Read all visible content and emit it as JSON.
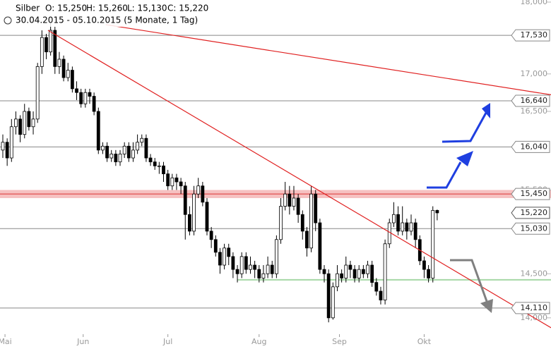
{
  "chart_data": {
    "type": "candlestick",
    "title": "Silber",
    "ohlc_labels": [
      "O: 15,250",
      "H: 15,260",
      "L: 15,130",
      "C: 15,220"
    ],
    "subtitle": "30.04.2015 - 05.10.2015 (5 Monate, 1 Tag)",
    "log_scale": true,
    "xlim": [
      -0.65,
      126.2
    ],
    "ylim": [
      13.85,
      18.03
    ],
    "xticks": [
      {
        "value": 0.5,
        "label": "Mai"
      },
      {
        "value": 18.5,
        "label": "Jun"
      },
      {
        "value": 38,
        "label": "Jul"
      },
      {
        "value": 59,
        "label": "Aug"
      },
      {
        "value": 77.5,
        "label": "Sep"
      },
      {
        "value": 97,
        "label": "Okt"
      }
    ],
    "yticks": [
      {
        "value": 18,
        "label": "18,000"
      },
      {
        "value": 17,
        "label": "17,000"
      },
      {
        "value": 16.5,
        "label": "16,500"
      },
      {
        "value": 15.5,
        "label": "15,500"
      },
      {
        "value": 14.5,
        "label": "14,500"
      },
      {
        "value": 14,
        "label": "14,000"
      }
    ],
    "up_color": "#ffffff",
    "down_color": "#000000",
    "candles": [
      [
        16.0,
        16.2,
        15.9,
        16.1
      ],
      [
        16.1,
        16.15,
        15.8,
        15.9
      ],
      [
        15.9,
        16.4,
        15.85,
        16.3
      ],
      [
        16.3,
        16.5,
        16.2,
        16.4
      ],
      [
        16.4,
        16.45,
        16.1,
        16.2
      ],
      [
        16.2,
        16.6,
        16.15,
        16.5
      ],
      [
        16.5,
        16.55,
        16.25,
        16.3
      ],
      [
        16.3,
        16.5,
        16.2,
        16.4
      ],
      [
        16.4,
        17.15,
        16.35,
        17.1
      ],
      [
        17.1,
        17.6,
        17.0,
        17.5
      ],
      [
        17.5,
        17.55,
        17.2,
        17.3
      ],
      [
        17.3,
        17.7,
        17.25,
        17.6
      ],
      [
        17.6,
        17.65,
        17.0,
        17.1
      ],
      [
        17.1,
        17.3,
        17.0,
        17.2
      ],
      [
        17.2,
        17.25,
        16.9,
        16.95
      ],
      [
        16.95,
        17.15,
        16.9,
        17.05
      ],
      [
        17.05,
        17.1,
        16.75,
        16.8
      ],
      [
        16.8,
        16.9,
        16.65,
        16.75
      ],
      [
        16.75,
        16.8,
        16.55,
        16.6
      ],
      [
        16.6,
        16.8,
        16.55,
        16.75
      ],
      [
        16.75,
        16.8,
        16.6,
        16.7
      ],
      [
        16.7,
        16.75,
        16.45,
        16.5
      ],
      [
        16.5,
        16.55,
        15.95,
        16.0
      ],
      [
        16.0,
        16.1,
        15.95,
        16.05
      ],
      [
        16.05,
        16.1,
        15.85,
        15.9
      ],
      [
        15.9,
        16.0,
        15.85,
        15.95
      ],
      [
        15.95,
        16.0,
        15.8,
        15.85
      ],
      [
        15.85,
        16.0,
        15.8,
        15.95
      ],
      [
        15.95,
        16.1,
        15.9,
        16.05
      ],
      [
        16.05,
        16.1,
        15.85,
        15.9
      ],
      [
        15.9,
        16.1,
        15.85,
        16.0
      ],
      [
        16.0,
        16.2,
        15.95,
        16.1
      ],
      [
        16.1,
        16.2,
        16.05,
        16.15
      ],
      [
        16.15,
        16.2,
        15.85,
        15.9
      ],
      [
        15.9,
        15.95,
        15.8,
        15.85
      ],
      [
        15.85,
        15.9,
        15.75,
        15.8
      ],
      [
        15.8,
        15.85,
        15.7,
        15.8
      ],
      [
        15.8,
        15.85,
        15.6,
        15.7
      ],
      [
        15.7,
        15.75,
        15.5,
        15.55
      ],
      [
        15.55,
        15.7,
        15.5,
        15.65
      ],
      [
        15.65,
        15.7,
        15.5,
        15.6
      ],
      [
        15.6,
        15.65,
        15.45,
        15.55
      ],
      [
        15.55,
        15.6,
        14.9,
        15.2
      ],
      [
        15.2,
        15.3,
        14.95,
        15.0
      ],
      [
        15.0,
        15.55,
        14.95,
        15.45
      ],
      [
        15.45,
        15.65,
        15.4,
        15.55
      ],
      [
        15.55,
        15.6,
        15.3,
        15.35
      ],
      [
        15.35,
        15.4,
        14.95,
        15.0
      ],
      [
        15.0,
        15.05,
        14.8,
        14.9
      ],
      [
        14.9,
        14.95,
        14.7,
        14.75
      ],
      [
        14.75,
        14.8,
        14.5,
        14.6
      ],
      [
        14.6,
        14.85,
        14.55,
        14.8
      ],
      [
        14.8,
        14.85,
        14.6,
        14.7
      ],
      [
        14.7,
        14.75,
        14.45,
        14.55
      ],
      [
        14.55,
        14.6,
        14.4,
        14.5
      ],
      [
        14.5,
        14.75,
        14.45,
        14.7
      ],
      [
        14.7,
        14.75,
        14.5,
        14.55
      ],
      [
        14.55,
        14.7,
        14.5,
        14.6
      ],
      [
        14.6,
        14.65,
        14.45,
        14.55
      ],
      [
        14.55,
        14.6,
        14.4,
        14.45
      ],
      [
        14.45,
        14.6,
        14.4,
        14.5
      ],
      [
        14.5,
        14.7,
        14.45,
        14.6
      ],
      [
        14.6,
        14.65,
        14.45,
        14.5
      ],
      [
        14.5,
        14.95,
        14.45,
        14.9
      ],
      [
        14.9,
        15.4,
        14.85,
        15.3
      ],
      [
        15.3,
        15.6,
        15.25,
        15.45
      ],
      [
        15.45,
        15.55,
        15.2,
        15.3
      ],
      [
        15.3,
        15.55,
        15.25,
        15.4
      ],
      [
        15.4,
        15.45,
        15.1,
        15.2
      ],
      [
        15.2,
        15.25,
        14.9,
        15.0
      ],
      [
        15.0,
        15.05,
        14.7,
        14.8
      ],
      [
        14.8,
        15.55,
        14.75,
        15.45
      ],
      [
        15.45,
        15.5,
        15.0,
        15.1
      ],
      [
        15.1,
        15.15,
        14.5,
        14.55
      ],
      [
        14.55,
        14.6,
        14.4,
        14.5
      ],
      [
        14.5,
        14.55,
        13.95,
        14.0
      ],
      [
        14.0,
        14.4,
        13.98,
        14.35
      ],
      [
        14.35,
        14.6,
        14.3,
        14.5
      ],
      [
        14.5,
        14.55,
        14.4,
        14.45
      ],
      [
        14.45,
        14.7,
        14.4,
        14.6
      ],
      [
        14.6,
        14.65,
        14.45,
        14.55
      ],
      [
        14.55,
        14.6,
        14.4,
        14.45
      ],
      [
        14.45,
        14.6,
        14.4,
        14.55
      ],
      [
        14.55,
        14.6,
        14.45,
        14.5
      ],
      [
        14.5,
        14.65,
        14.45,
        14.6
      ],
      [
        14.6,
        14.65,
        14.35,
        14.4
      ],
      [
        14.4,
        14.45,
        14.25,
        14.3
      ],
      [
        14.3,
        14.35,
        14.15,
        14.2
      ],
      [
        14.2,
        14.9,
        14.15,
        14.85
      ],
      [
        14.85,
        15.15,
        14.8,
        15.1
      ],
      [
        15.1,
        15.35,
        15.05,
        15.2
      ],
      [
        15.2,
        15.3,
        14.95,
        15.0
      ],
      [
        15.0,
        15.3,
        14.95,
        15.1
      ],
      [
        15.1,
        15.15,
        14.9,
        15.0
      ],
      [
        15.0,
        15.2,
        14.95,
        15.1
      ],
      [
        15.1,
        15.15,
        14.8,
        14.9
      ],
      [
        14.9,
        14.95,
        14.6,
        14.65
      ],
      [
        14.65,
        14.7,
        14.45,
        14.55
      ],
      [
        14.55,
        14.6,
        14.4,
        14.45
      ],
      [
        14.45,
        15.3,
        14.4,
        15.25
      ],
      [
        15.25,
        15.26,
        15.13,
        15.22
      ]
    ],
    "levels": [
      {
        "value": 17.53,
        "label": "17,530"
      },
      {
        "value": 16.64,
        "label": "16,640"
      },
      {
        "value": 16.04,
        "label": "16,040"
      },
      {
        "value": 15.45,
        "label": "15,450"
      },
      {
        "value": 15.03,
        "label": "15,030"
      },
      {
        "value": 14.11,
        "label": "14,110"
      }
    ],
    "last_price": {
      "value": 15.22,
      "label": "15,220"
    },
    "resistance_band": [
      15.4,
      15.5
    ],
    "support": {
      "value": 14.43,
      "start": 54
    },
    "trendlines": [
      {
        "start": [
          10.4,
          17.6
        ],
        "end": [
          126.2,
          13.89
        ]
      },
      {
        "start": [
          23.7,
          17.68
        ],
        "end": [
          126.2,
          16.72
        ]
      }
    ]
  }
}
